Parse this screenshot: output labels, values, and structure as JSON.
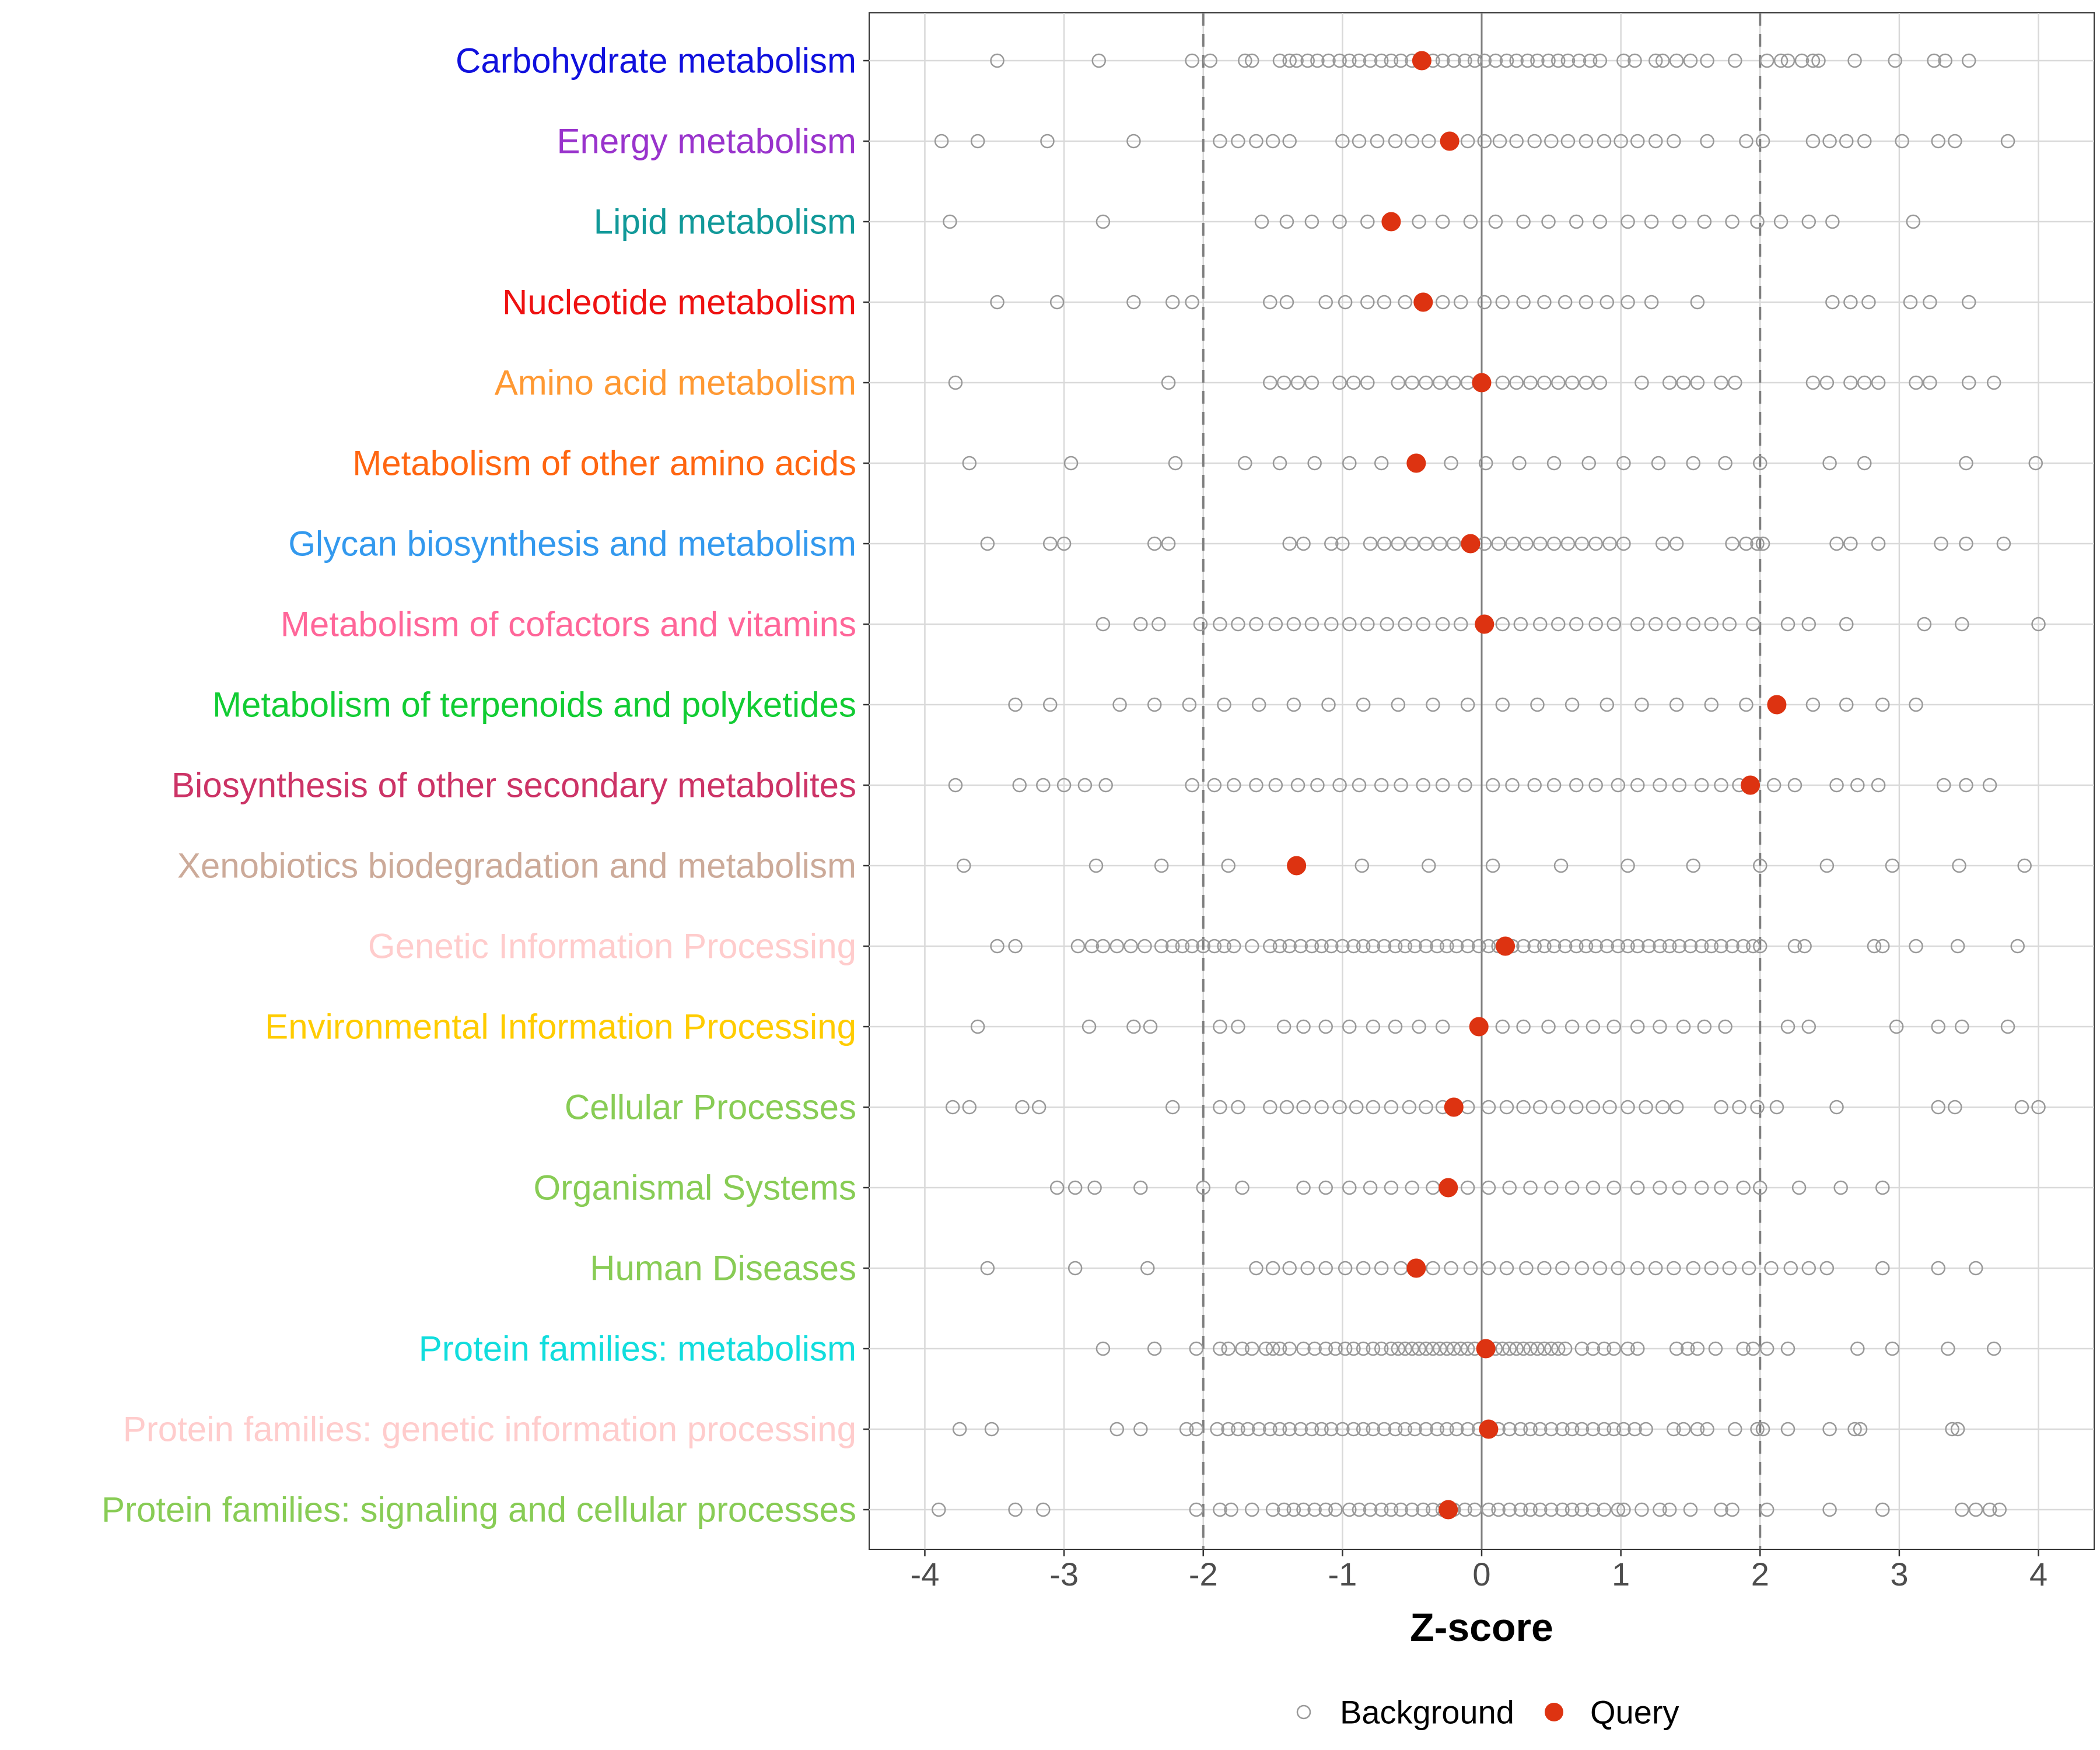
{
  "chart_data": {
    "type": "scatter",
    "xlabel": "Z-score",
    "ylabel": "",
    "xlim": [
      -4.4,
      4.4
    ],
    "xticks": [
      -4,
      -3,
      -2,
      -1,
      0,
      1,
      2,
      3,
      4
    ],
    "xtick_labels": [
      "-4",
      "-3",
      "-2",
      "-1",
      "0",
      "1",
      "2",
      "3",
      "4"
    ],
    "threshold_lines": [
      -2,
      2
    ],
    "zero_line": 0,
    "grid": true,
    "legend": {
      "position": "bottom",
      "items": [
        {
          "name": "Background",
          "marker": "open-circle",
          "color": "#999999"
        },
        {
          "name": "Query",
          "marker": "filled-circle",
          "color": "#dd3311"
        }
      ]
    },
    "categories": [
      {
        "name": "Carbohydrate metabolism",
        "color": "#1010dd",
        "query": -0.43,
        "background": [
          -3.48,
          -2.75,
          -2.08,
          -1.95,
          -1.7,
          -1.65,
          -1.45,
          -1.38,
          -1.33,
          -1.25,
          -1.18,
          -1.1,
          -1.02,
          -0.95,
          -0.88,
          -0.8,
          -0.72,
          -0.65,
          -0.58,
          -0.5,
          -0.42,
          -0.35,
          -0.28,
          -0.2,
          -0.12,
          -0.05,
          0.02,
          0.1,
          0.18,
          0.25,
          0.33,
          0.4,
          0.48,
          0.55,
          0.62,
          0.7,
          0.78,
          0.85,
          1.02,
          1.1,
          1.25,
          1.3,
          1.4,
          1.5,
          1.62,
          1.82,
          2.05,
          2.15,
          2.2,
          2.3,
          2.38,
          2.42,
          2.68,
          2.97,
          3.25,
          3.33,
          3.5
        ]
      },
      {
        "name": "Energy metabolism",
        "color": "#9933cc",
        "query": -0.23,
        "background": [
          -3.88,
          -3.62,
          -3.12,
          -2.5,
          -1.88,
          -1.75,
          -1.62,
          -1.5,
          -1.38,
          -1.0,
          -0.88,
          -0.75,
          -0.62,
          -0.5,
          -0.38,
          -0.1,
          0.02,
          0.13,
          0.25,
          0.38,
          0.5,
          0.62,
          0.75,
          0.88,
          1.0,
          1.12,
          1.25,
          1.38,
          1.62,
          1.9,
          2.02,
          2.38,
          2.5,
          2.62,
          2.75,
          3.02,
          3.28,
          3.4,
          3.78
        ]
      },
      {
        "name": "Lipid metabolism",
        "color": "#119999",
        "query": -0.65,
        "background": [
          -3.82,
          -2.72,
          -1.58,
          -1.4,
          -1.22,
          -1.02,
          -0.82,
          -0.45,
          -0.28,
          -0.08,
          0.1,
          0.3,
          0.48,
          0.68,
          0.85,
          1.05,
          1.22,
          1.42,
          1.6,
          1.8,
          1.98,
          2.15,
          2.35,
          2.52,
          3.1
        ]
      },
      {
        "name": "Nucleotide metabolism",
        "color": "#ee1111",
        "query": -0.42,
        "background": [
          -3.48,
          -3.05,
          -2.5,
          -2.22,
          -2.08,
          -1.52,
          -1.4,
          -1.12,
          -0.98,
          -0.82,
          -0.7,
          -0.55,
          -0.28,
          -0.15,
          0.02,
          0.15,
          0.3,
          0.45,
          0.6,
          0.75,
          0.9,
          1.05,
          1.22,
          1.55,
          2.52,
          2.65,
          2.78,
          3.08,
          3.22,
          3.5
        ]
      },
      {
        "name": "Amino acid metabolism",
        "color": "#ff9933",
        "query": 0.0,
        "background": [
          -3.78,
          -2.25,
          -1.52,
          -1.42,
          -1.32,
          -1.22,
          -1.02,
          -0.92,
          -0.82,
          -0.6,
          -0.5,
          -0.4,
          -0.3,
          -0.2,
          -0.1,
          0.15,
          0.25,
          0.35,
          0.45,
          0.55,
          0.65,
          0.75,
          0.85,
          1.15,
          1.35,
          1.45,
          1.55,
          1.72,
          1.82,
          2.38,
          2.48,
          2.65,
          2.75,
          2.85,
          3.12,
          3.22,
          3.5,
          3.68
        ]
      },
      {
        "name": "Metabolism of other amino acids",
        "color": "#ff6611",
        "query": -0.47,
        "background": [
          -3.68,
          -2.95,
          -2.2,
          -1.7,
          -1.45,
          -1.2,
          -0.95,
          -0.72,
          -0.22,
          0.03,
          0.27,
          0.52,
          0.77,
          1.02,
          1.27,
          1.52,
          1.75,
          2.0,
          2.5,
          2.75,
          3.48,
          3.98
        ]
      },
      {
        "name": "Glycan biosynthesis and metabolism",
        "color": "#3399ee",
        "query": -0.08,
        "background": [
          -3.55,
          -3.1,
          -3.0,
          -2.35,
          -2.25,
          -1.38,
          -1.28,
          -1.08,
          -1.0,
          -0.8,
          -0.7,
          -0.6,
          -0.5,
          -0.4,
          -0.3,
          -0.2,
          0.02,
          0.12,
          0.22,
          0.32,
          0.42,
          0.52,
          0.62,
          0.72,
          0.82,
          0.92,
          1.02,
          1.3,
          1.4,
          1.8,
          1.9,
          1.98,
          2.02,
          2.55,
          2.65,
          2.85,
          3.3,
          3.48,
          3.75
        ]
      },
      {
        "name": "Metabolism of cofactors and vitamins",
        "color": "#ff6699",
        "query": 0.02,
        "background": [
          -2.72,
          -2.45,
          -2.32,
          -2.02,
          -1.88,
          -1.75,
          -1.62,
          -1.48,
          -1.35,
          -1.22,
          -1.08,
          -0.95,
          -0.82,
          -0.68,
          -0.55,
          -0.42,
          -0.28,
          -0.15,
          0.02,
          0.15,
          0.28,
          0.42,
          0.55,
          0.68,
          0.82,
          0.95,
          1.12,
          1.25,
          1.38,
          1.52,
          1.65,
          1.78,
          1.95,
          2.2,
          2.35,
          2.62,
          3.18,
          3.45,
          4.0
        ]
      },
      {
        "name": "Metabolism of terpenoids and polyketides",
        "color": "#11cc33",
        "query": 2.12,
        "background": [
          -3.35,
          -3.1,
          -2.6,
          -2.35,
          -2.1,
          -1.85,
          -1.6,
          -1.35,
          -1.1,
          -0.85,
          -0.6,
          -0.35,
          -0.1,
          0.15,
          0.4,
          0.65,
          0.9,
          1.15,
          1.4,
          1.65,
          1.9,
          2.38,
          2.62,
          2.88,
          3.12
        ]
      },
      {
        "name": "Biosynthesis of other secondary metabolites",
        "color": "#cc3366",
        "query": 1.93,
        "background": [
          -3.78,
          -3.32,
          -3.15,
          -3.0,
          -2.85,
          -2.7,
          -2.08,
          -1.92,
          -1.78,
          -1.62,
          -1.48,
          -1.32,
          -1.18,
          -1.02,
          -0.88,
          -0.72,
          -0.58,
          -0.42,
          -0.28,
          -0.12,
          0.08,
          0.22,
          0.38,
          0.52,
          0.68,
          0.82,
          0.98,
          1.12,
          1.28,
          1.42,
          1.58,
          1.72,
          1.85,
          2.1,
          2.25,
          2.55,
          2.7,
          2.85,
          3.32,
          3.48,
          3.65
        ]
      },
      {
        "name": "Xenobiotics biodegradation and metabolism",
        "color": "#ccaa99",
        "query": -1.33,
        "background": [
          -3.72,
          -2.77,
          -2.3,
          -1.82,
          -0.86,
          -0.38,
          0.08,
          0.57,
          1.05,
          1.52,
          2.0,
          2.48,
          2.95,
          3.43,
          3.9
        ]
      },
      {
        "name": "Genetic Information Processing",
        "color": "#ffcccc",
        "query": 0.17,
        "background": [
          -3.48,
          -3.35,
          -2.9,
          -2.8,
          -2.72,
          -2.62,
          -2.52,
          -2.42,
          -2.3,
          -2.22,
          -2.15,
          -2.08,
          -2.0,
          -1.92,
          -1.85,
          -1.78,
          -1.65,
          -1.52,
          -1.45,
          -1.38,
          -1.3,
          -1.22,
          -1.15,
          -1.08,
          -1.0,
          -0.92,
          -0.85,
          -0.78,
          -0.7,
          -0.62,
          -0.55,
          -0.48,
          -0.4,
          -0.32,
          -0.25,
          -0.18,
          -0.1,
          -0.02,
          0.05,
          0.12,
          0.22,
          0.3,
          0.38,
          0.45,
          0.52,
          0.6,
          0.68,
          0.75,
          0.82,
          0.9,
          0.98,
          1.05,
          1.12,
          1.2,
          1.28,
          1.35,
          1.42,
          1.5,
          1.58,
          1.65,
          1.72,
          1.8,
          1.88,
          1.95,
          2.0,
          2.25,
          2.32,
          2.82,
          2.88,
          3.12,
          3.42,
          3.85
        ]
      },
      {
        "name": "Environmental Information Processing",
        "color": "#ffcc00",
        "query": -0.02,
        "background": [
          -3.62,
          -2.82,
          -2.5,
          -2.38,
          -1.88,
          -1.75,
          -1.42,
          -1.28,
          -1.12,
          -0.95,
          -0.78,
          -0.62,
          -0.45,
          -0.28,
          0.15,
          0.3,
          0.48,
          0.65,
          0.8,
          0.95,
          1.12,
          1.28,
          1.45,
          1.6,
          1.75,
          2.2,
          2.35,
          2.98,
          3.28,
          3.45,
          3.78
        ]
      },
      {
        "name": "Cellular Processes",
        "color": "#88cc55",
        "query": -0.2,
        "background": [
          -3.8,
          -3.68,
          -3.3,
          -3.18,
          -2.22,
          -1.88,
          -1.75,
          -1.52,
          -1.4,
          -1.28,
          -1.15,
          -1.02,
          -0.9,
          -0.78,
          -0.65,
          -0.52,
          -0.4,
          -0.28,
          -0.1,
          0.05,
          0.18,
          0.3,
          0.42,
          0.55,
          0.68,
          0.8,
          0.92,
          1.05,
          1.18,
          1.3,
          1.4,
          1.72,
          1.85,
          1.98,
          2.12,
          2.55,
          3.28,
          3.4,
          3.88,
          4.0
        ]
      },
      {
        "name": "Organismal Systems",
        "color": "#88cc55",
        "query": -0.24,
        "background": [
          -3.05,
          -2.92,
          -2.78,
          -2.45,
          -2.0,
          -1.72,
          -1.28,
          -1.12,
          -0.95,
          -0.8,
          -0.65,
          -0.5,
          -0.35,
          -0.1,
          0.05,
          0.2,
          0.35,
          0.5,
          0.65,
          0.8,
          0.95,
          1.12,
          1.28,
          1.42,
          1.58,
          1.72,
          1.88,
          2.0,
          2.28,
          2.58,
          2.88
        ]
      },
      {
        "name": "Human Diseases",
        "color": "#88cc55",
        "query": -0.47,
        "background": [
          -3.55,
          -2.92,
          -2.4,
          -1.62,
          -1.5,
          -1.38,
          -1.25,
          -1.12,
          -0.98,
          -0.85,
          -0.72,
          -0.58,
          -0.35,
          -0.22,
          -0.08,
          0.05,
          0.18,
          0.32,
          0.45,
          0.58,
          0.72,
          0.85,
          0.98,
          1.12,
          1.25,
          1.38,
          1.52,
          1.65,
          1.78,
          1.92,
          2.08,
          2.22,
          2.35,
          2.48,
          2.88,
          3.28,
          3.55
        ]
      },
      {
        "name": "Protein families: metabolism",
        "color": "#11dddd",
        "query": 0.03,
        "background": [
          -2.72,
          -2.35,
          -2.05,
          -1.88,
          -1.82,
          -1.72,
          -1.65,
          -1.55,
          -1.5,
          -1.45,
          -1.38,
          -1.28,
          -1.2,
          -1.12,
          -1.05,
          -0.98,
          -0.92,
          -0.85,
          -0.78,
          -0.72,
          -0.65,
          -0.6,
          -0.55,
          -0.5,
          -0.45,
          -0.4,
          -0.35,
          -0.3,
          -0.25,
          -0.2,
          -0.15,
          -0.1,
          -0.05,
          0.05,
          0.1,
          0.15,
          0.2,
          0.25,
          0.3,
          0.35,
          0.4,
          0.45,
          0.5,
          0.55,
          0.6,
          0.72,
          0.8,
          0.88,
          0.95,
          1.05,
          1.12,
          1.4,
          1.48,
          1.55,
          1.68,
          1.88,
          1.95,
          2.05,
          2.2,
          2.7,
          2.95,
          3.35,
          3.68
        ]
      },
      {
        "name": "Protein families: genetic information processing",
        "color": "#ffcccc",
        "query": 0.05,
        "background": [
          -3.75,
          -3.52,
          -2.62,
          -2.45,
          -2.12,
          -2.05,
          -1.9,
          -1.82,
          -1.75,
          -1.68,
          -1.6,
          -1.52,
          -1.45,
          -1.38,
          -1.3,
          -1.22,
          -1.15,
          -1.08,
          -1.0,
          -0.92,
          -0.85,
          -0.78,
          -0.7,
          -0.62,
          -0.55,
          -0.48,
          -0.4,
          -0.32,
          -0.25,
          -0.18,
          -0.1,
          -0.02,
          0.12,
          0.2,
          0.28,
          0.35,
          0.42,
          0.5,
          0.58,
          0.65,
          0.72,
          0.8,
          0.88,
          0.95,
          1.02,
          1.1,
          1.18,
          1.38,
          1.45,
          1.55,
          1.62,
          1.82,
          1.98,
          2.02,
          2.2,
          2.5,
          2.68,
          2.72,
          3.38,
          3.42
        ]
      },
      {
        "name": "Protein families: signaling and cellular processes",
        "color": "#88cc55",
        "query": -0.24,
        "background": [
          -3.9,
          -3.35,
          -3.15,
          -2.05,
          -1.88,
          -1.8,
          -1.65,
          -1.5,
          -1.42,
          -1.35,
          -1.28,
          -1.2,
          -1.12,
          -1.05,
          -0.95,
          -0.88,
          -0.8,
          -0.72,
          -0.65,
          -0.58,
          -0.5,
          -0.42,
          -0.35,
          -0.28,
          -0.2,
          -0.12,
          -0.05,
          0.05,
          0.12,
          0.2,
          0.28,
          0.35,
          0.42,
          0.5,
          0.58,
          0.65,
          0.72,
          0.8,
          0.88,
          0.98,
          1.02,
          1.15,
          1.28,
          1.35,
          1.5,
          1.72,
          1.8,
          2.05,
          2.5,
          2.88,
          3.45,
          3.55,
          3.65,
          3.72
        ]
      }
    ]
  }
}
